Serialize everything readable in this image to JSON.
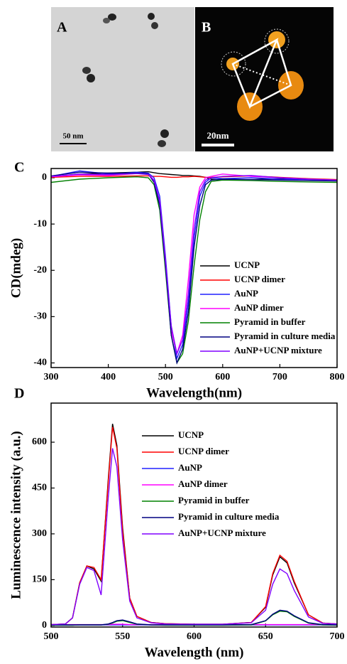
{
  "micrographs": [
    {
      "label": "A",
      "scale_bar": "50 nm"
    },
    {
      "label": "B",
      "scale_bar": "20nm"
    }
  ],
  "chart_data": [
    {
      "type": "line",
      "panel_label": "C",
      "x_label": "Wavelength(nm)",
      "y_label": "CD(mdeg)",
      "x": [
        300,
        350,
        400,
        450,
        470,
        480,
        490,
        500,
        510,
        520,
        530,
        540,
        550,
        560,
        570,
        580,
        600,
        650,
        700,
        750,
        800
      ],
      "xlim": [
        300,
        800
      ],
      "xticks": [
        300,
        400,
        500,
        600,
        700,
        800
      ],
      "ylim": [
        -41,
        2
      ],
      "yticks": [
        0,
        -10,
        -20,
        -30,
        -40
      ],
      "series": [
        {
          "name": "UCNP",
          "color": "#000000",
          "values": [
            0.2,
            0.8,
            1.0,
            1.2,
            1.3,
            1.1,
            0.9,
            0.8,
            0.7,
            0.6,
            0.5,
            0.5,
            0.4,
            0.3,
            0.1,
            -0.3,
            -0.5,
            -0.4,
            -0.2,
            -0.4,
            -0.6
          ]
        },
        {
          "name": "UCNP dimer",
          "color": "#ff0000",
          "values": [
            0.1,
            0.3,
            0.3,
            0.4,
            0.4,
            0.3,
            0.3,
            0.2,
            0.1,
            0.1,
            0.2,
            0.2,
            0.3,
            0.2,
            0.1,
            0.1,
            0.2,
            0.4,
            0.1,
            -0.2,
            -0.4
          ]
        },
        {
          "name": "AuNP",
          "color": "#2020ff",
          "values": [
            0.3,
            1.5,
            0.8,
            1.2,
            1.0,
            0,
            -4,
            -17,
            -32,
            -39,
            -36,
            -27,
            -13,
            -4,
            -1,
            0,
            -0.2,
            0,
            -0.3,
            -0.4,
            -0.6
          ]
        },
        {
          "name": "AuNP dimer",
          "color": "#ff00ff",
          "values": [
            0.2,
            0.6,
            0.5,
            0.9,
            0.8,
            -0.5,
            -5,
            -18,
            -33,
            -38,
            -34,
            -22,
            -8,
            -2,
            0,
            0.3,
            0.8,
            0.3,
            0,
            -0.3,
            -0.5
          ]
        },
        {
          "name": "Pyramid in buffer",
          "color": "#008000",
          "values": [
            -1,
            -0.3,
            0,
            0.2,
            0,
            -1.5,
            -7,
            -20,
            -34,
            -40,
            -38,
            -31,
            -19,
            -9,
            -3,
            -0.8,
            -0.5,
            -0.6,
            -0.8,
            -0.9,
            -1.0
          ]
        },
        {
          "name": "Pyramid in culture media",
          "color": "#000080",
          "values": [
            0.4,
            1.2,
            1.0,
            1.0,
            0.8,
            -1,
            -6,
            -19,
            -34,
            -40,
            -37,
            -29,
            -15,
            -6,
            -1.5,
            -0.5,
            -0.3,
            -0.4,
            -0.5,
            -0.6,
            -0.7
          ]
        },
        {
          "name": "AuNP+UCNP  mixture",
          "color": "#8000ff",
          "values": [
            0.3,
            0.8,
            0.7,
            0.9,
            0.7,
            -0.6,
            -5,
            -18,
            -32,
            -38,
            -35,
            -25,
            -11,
            -3,
            -0.5,
            0,
            0.3,
            0.5,
            0,
            -0.3,
            -0.5
          ]
        }
      ]
    },
    {
      "type": "line",
      "panel_label": "D",
      "x_label": "Wavelength (nm)",
      "y_label": "Luminescence intensity (a.u.)",
      "x": [
        500,
        510,
        515,
        520,
        525,
        530,
        535,
        540,
        543,
        546,
        550,
        555,
        560,
        570,
        580,
        600,
        620,
        640,
        650,
        655,
        660,
        665,
        670,
        680,
        690,
        700
      ],
      "xlim": [
        500,
        700
      ],
      "xticks": [
        500,
        550,
        600,
        650,
        700
      ],
      "ylim": [
        -5,
        728
      ],
      "yticks": [
        0,
        150,
        300,
        450,
        600
      ],
      "series": [
        {
          "name": "UCNP",
          "color": "#000000",
          "values": [
            3,
            5,
            25,
            140,
            195,
            185,
            145,
            480,
            660,
            590,
            320,
            90,
            30,
            10,
            6,
            4,
            4,
            10,
            60,
            165,
            225,
            205,
            140,
            35,
            8,
            5
          ]
        },
        {
          "name": "UCNP dimer",
          "color": "#ff0000",
          "values": [
            3,
            5,
            25,
            140,
            195,
            190,
            150,
            470,
            650,
            580,
            310,
            90,
            30,
            10,
            6,
            4,
            4,
            10,
            62,
            170,
            230,
            210,
            145,
            35,
            8,
            5
          ]
        },
        {
          "name": "AuNP",
          "color": "#2020ff",
          "values": [
            1,
            1,
            1,
            2,
            2,
            2,
            2,
            2,
            2,
            2,
            2,
            2,
            2,
            2,
            2,
            2,
            2,
            2,
            2,
            2,
            2,
            2,
            2,
            2,
            2,
            2
          ]
        },
        {
          "name": "AuNP  dimer",
          "color": "#ff00ff",
          "values": [
            2,
            3,
            3,
            3,
            3,
            3,
            3,
            3,
            4,
            4,
            4,
            3,
            3,
            3,
            3,
            3,
            3,
            3,
            3,
            3,
            3,
            3,
            3,
            3,
            3,
            3
          ]
        },
        {
          "name": "Pyramid in buffer",
          "color": "#008000",
          "values": [
            1,
            1,
            1,
            2,
            2,
            2,
            2,
            4,
            8,
            14,
            16,
            10,
            4,
            2,
            1,
            1,
            1,
            2,
            15,
            35,
            47,
            45,
            30,
            8,
            2,
            1
          ]
        },
        {
          "name": "Pyramid in culture media",
          "color": "#000080",
          "values": [
            2,
            2,
            2,
            2,
            2,
            2,
            2,
            5,
            10,
            16,
            18,
            12,
            5,
            2,
            2,
            2,
            2,
            3,
            16,
            37,
            50,
            47,
            32,
            9,
            3,
            2
          ]
        },
        {
          "name": "AuNP+UCNP mixture",
          "color": "#8000ff",
          "values": [
            3,
            5,
            25,
            135,
            190,
            180,
            100,
            420,
            580,
            520,
            280,
            80,
            25,
            9,
            5,
            4,
            4,
            9,
            50,
            135,
            185,
            170,
            115,
            28,
            7,
            5
          ]
        }
      ]
    }
  ]
}
